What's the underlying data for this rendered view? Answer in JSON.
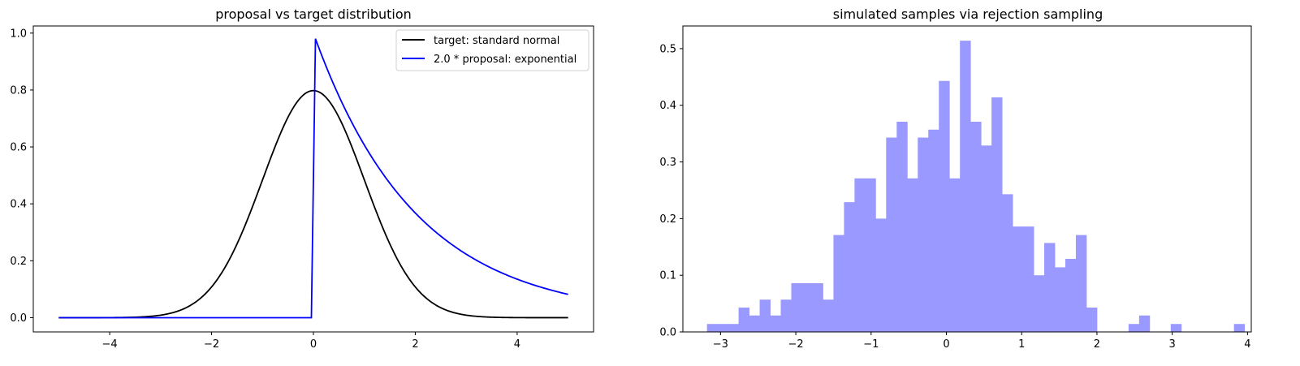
{
  "chart_data": [
    {
      "type": "line",
      "title": "proposal vs target distribution",
      "xlabel": "",
      "ylabel": "",
      "xlim": [
        -5.5,
        5.5
      ],
      "ylim": [
        -0.05,
        1.025
      ],
      "xticks": [
        -4,
        -2,
        0,
        2,
        4
      ],
      "xtick_labels": [
        "−4",
        "−2",
        "0",
        "2",
        "4"
      ],
      "yticks": [
        0.0,
        0.2,
        0.4,
        0.6,
        0.8,
        1.0
      ],
      "ytick_labels": [
        "0.0",
        "0.2",
        "0.4",
        "0.6",
        "0.8",
        "1.0"
      ],
      "grid": false,
      "legend_position": "top-right",
      "x_range": [
        -5,
        5
      ],
      "series": [
        {
          "name": "target: standard normal",
          "color": "#000000",
          "function": "2 * normal_pdf(x)",
          "x": [
            -5,
            -4,
            -3,
            -2.5,
            -2,
            -1.5,
            -1,
            -0.5,
            0,
            0.5,
            1,
            1.5,
            2,
            2.5,
            3,
            4,
            5
          ],
          "y": [
            0.0,
            0.0003,
            0.0089,
            0.035,
            0.108,
            0.259,
            0.484,
            0.704,
            0.798,
            0.704,
            0.484,
            0.259,
            0.108,
            0.035,
            0.0089,
            0.0003,
            0.0
          ]
        },
        {
          "name": "2.0 * proposal: exponential",
          "color": "#0000ff",
          "function": "2 * 0.5 * exp(-0.5 * x) for x >= 0, else 0",
          "x": [
            -5,
            -0.05,
            0.05,
            0.5,
            1,
            1.5,
            2,
            2.5,
            3,
            3.5,
            4,
            4.5,
            5
          ],
          "y": [
            0.0,
            0.0,
            0.975,
            0.779,
            0.607,
            0.472,
            0.368,
            0.287,
            0.223,
            0.174,
            0.135,
            0.105,
            0.082
          ]
        }
      ]
    },
    {
      "type": "bar",
      "title": "simulated samples via rejection sampling",
      "xlabel": "",
      "ylabel": "",
      "xlim": [
        -3.5,
        4.05
      ],
      "ylim": [
        0,
        0.54
      ],
      "xticks": [
        -3,
        -2,
        -1,
        0,
        1,
        2,
        3,
        4
      ],
      "xtick_labels": [
        "−3",
        "−2",
        "−1",
        "0",
        "1",
        "2",
        "3",
        "4"
      ],
      "yticks": [
        0.0,
        0.1,
        0.2,
        0.3,
        0.4,
        0.5
      ],
      "ytick_labels": [
        "0.0",
        "0.1",
        "0.2",
        "0.3",
        "0.4",
        "0.5"
      ],
      "grid": false,
      "color": "#9999ff",
      "bin_start": -3.18,
      "bin_width": 0.14,
      "values": [
        0.014,
        0.014,
        0.014,
        0.043,
        0.029,
        0.057,
        0.029,
        0.057,
        0.086,
        0.086,
        0.086,
        0.057,
        0.171,
        0.229,
        0.271,
        0.271,
        0.2,
        0.343,
        0.371,
        0.271,
        0.343,
        0.357,
        0.443,
        0.271,
        0.514,
        0.371,
        0.329,
        0.414,
        0.243,
        0.186,
        0.186,
        0.1,
        0.157,
        0.114,
        0.129,
        0.171,
        0.043,
        0,
        0,
        0,
        0.014,
        0.029,
        0,
        0,
        0.014,
        0,
        0,
        0,
        0,
        0,
        0.014
      ]
    }
  ]
}
